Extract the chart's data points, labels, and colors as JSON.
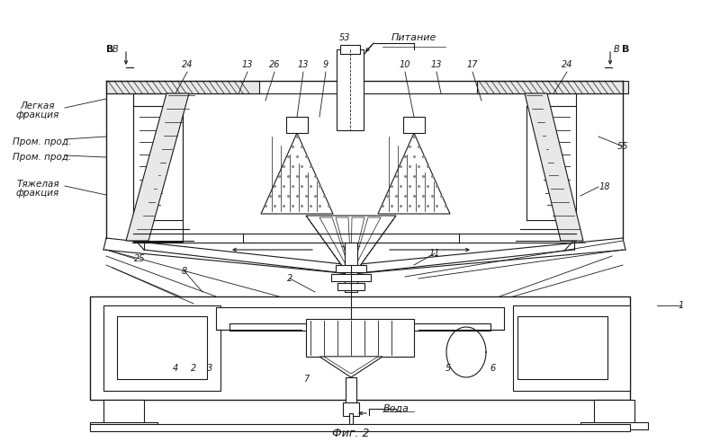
{
  "bg_color": "#ffffff",
  "line_color": "#1a1a1a",
  "fig_caption": "Фиг. 2",
  "left_labels": [
    [
      "Легкая",
      42,
      118
    ],
    [
      "фракция",
      42,
      128
    ],
    [
      "Пром. прод.",
      47,
      158
    ],
    [
      "Пром. прод.",
      47,
      175
    ],
    [
      "Тяжелая",
      42,
      205
    ],
    [
      "фракция",
      42,
      215
    ]
  ],
  "part_numbers": [
    [
      "В",
      128,
      55,
      7
    ],
    [
      "В",
      685,
      55,
      7
    ],
    [
      "24",
      208,
      72,
      7
    ],
    [
      "13",
      275,
      72,
      7
    ],
    [
      "26",
      305,
      72,
      7
    ],
    [
      "13",
      337,
      72,
      7
    ],
    [
      "9",
      362,
      72,
      7
    ],
    [
      "53",
      383,
      42,
      7
    ],
    [
      "10",
      450,
      72,
      7
    ],
    [
      "13",
      485,
      72,
      7
    ],
    [
      "17",
      525,
      72,
      7
    ],
    [
      "24",
      630,
      72,
      7
    ],
    [
      "25",
      155,
      288,
      7
    ],
    [
      "8",
      205,
      302,
      7
    ],
    [
      "2",
      322,
      310,
      7
    ],
    [
      "11",
      483,
      282,
      7
    ],
    [
      "18",
      672,
      208,
      7
    ],
    [
      "55",
      692,
      163,
      7
    ],
    [
      "1",
      757,
      340,
      7
    ],
    [
      "4",
      195,
      410,
      7
    ],
    [
      "2",
      215,
      410,
      7
    ],
    [
      "3",
      233,
      410,
      7
    ],
    [
      "7",
      340,
      422,
      7
    ],
    [
      "5",
      498,
      410,
      7
    ],
    [
      "6",
      548,
      410,
      7
    ]
  ]
}
